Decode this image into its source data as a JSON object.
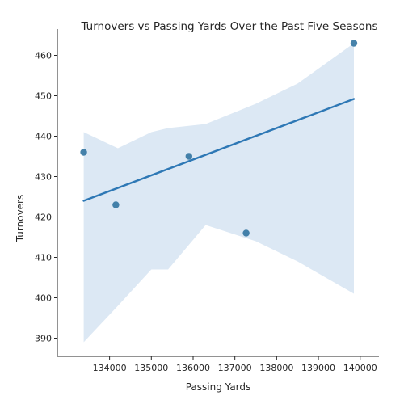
{
  "chart_data": {
    "type": "scatter",
    "title": "Turnovers vs Passing Yards Over the Past Five Seasons",
    "xlabel": "Passing Yards",
    "ylabel": "Turnovers",
    "x": [
      133380,
      134150,
      135900,
      137270,
      139850
    ],
    "y": [
      436,
      423,
      435,
      416,
      463
    ],
    "regression": {
      "x": [
        133380,
        139850
      ],
      "y": [
        424.0,
        449.2
      ]
    },
    "confidence_band": {
      "x": [
        133380,
        134200,
        135000,
        135400,
        136300,
        137500,
        138500,
        139850
      ],
      "upper": [
        441,
        437,
        441,
        442,
        443,
        448,
        453,
        463
      ],
      "lower": [
        389,
        398,
        407,
        407,
        418,
        414,
        409,
        401
      ]
    },
    "xlim": [
      132750,
      140450
    ],
    "ylim": [
      385.5,
      466.5
    ],
    "xticks": [
      134000,
      135000,
      136000,
      137000,
      138000,
      139000,
      140000
    ],
    "yticks": [
      390,
      400,
      410,
      420,
      430,
      440,
      450,
      460
    ],
    "colors": {
      "points": "#3274a1",
      "line": "#2e78b5",
      "band": "#dce8f4"
    },
    "grid": false
  }
}
